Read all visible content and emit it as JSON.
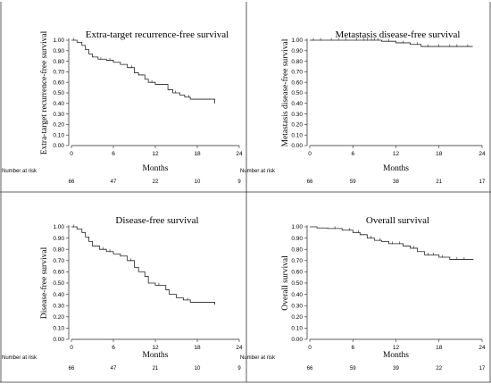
{
  "chart_data": [
    {
      "type": "line",
      "title": "Extra-target recurrence-free survival",
      "xlabel": "Months",
      "ylabel": "Extra-target recurrence-free survival",
      "xlim": [
        0,
        24
      ],
      "ylim": [
        0,
        1
      ],
      "xticks": [
        0,
        6,
        12,
        18,
        24
      ],
      "yticks": [
        "0.00",
        "0.10",
        "0.20",
        "0.30",
        "0.40",
        "0.50",
        "0.60",
        "0.70",
        "0.80",
        "0.90",
        "1.00"
      ],
      "risk_label": "Number at risk",
      "risk_counts": [
        "66",
        "47",
        "22",
        "10",
        "9"
      ],
      "x": [
        0,
        0.8,
        1.5,
        2.0,
        2.5,
        3.0,
        3.8,
        5.0,
        6.0,
        7.0,
        8.0,
        9.0,
        9.6,
        10.5,
        11.0,
        12.0,
        13.0,
        13.8,
        14.5,
        15.5,
        16.2,
        17.0,
        20.5
      ],
      "y": [
        1.0,
        0.98,
        0.95,
        0.91,
        0.87,
        0.84,
        0.82,
        0.81,
        0.79,
        0.77,
        0.74,
        0.69,
        0.67,
        0.63,
        0.6,
        0.58,
        0.58,
        0.53,
        0.5,
        0.48,
        0.46,
        0.44,
        0.4
      ],
      "censor_x": [
        0.3,
        4.2,
        5.5,
        8.6,
        11.5,
        14.9,
        16.8
      ]
    },
    {
      "type": "line",
      "title": "Metastasis disease-free survival",
      "xlabel": "Months",
      "ylabel": "Metastasis disease-free survival",
      "xlim": [
        0,
        24
      ],
      "ylim": [
        0,
        1
      ],
      "xticks": [
        0,
        6,
        12,
        18,
        24
      ],
      "yticks": [
        "0.00",
        "0.10",
        "0.20",
        "0.30",
        "0.40",
        "0.50",
        "0.60",
        "0.70",
        "0.80",
        "0.90",
        "1.00"
      ],
      "risk_label": "Number at risk",
      "risk_counts": [
        "66",
        "59",
        "38",
        "21",
        "17"
      ],
      "x": [
        0,
        10.0,
        12.0,
        14.0,
        15.5,
        22.7
      ],
      "y": [
        1.0,
        0.99,
        0.975,
        0.96,
        0.94,
        0.94
      ],
      "censor_x": [
        0.5,
        1.5,
        3.0,
        4.0,
        5.0,
        6.5,
        7.5,
        8.0,
        8.6,
        9.0,
        9.5,
        11.0,
        13.0,
        15.0,
        16.5,
        18.0,
        19.5,
        20.5,
        22.0
      ]
    },
    {
      "type": "line",
      "title": "Disease-free survival",
      "xlabel": "Months",
      "ylabel": "Disease-free survival",
      "xlim": [
        0,
        24
      ],
      "ylim": [
        0,
        1
      ],
      "xticks": [
        0,
        6,
        12,
        18,
        24
      ],
      "yticks": [
        "0.00",
        "0.10",
        "0.20",
        "0.30",
        "0.40",
        "0.50",
        "0.60",
        "0.70",
        "0.80",
        "0.90",
        "1.00"
      ],
      "risk_label": "Number at risk",
      "risk_counts": [
        "66",
        "47",
        "21",
        "10",
        "9"
      ],
      "x": [
        0,
        0.8,
        1.5,
        2.0,
        2.5,
        3.0,
        4.0,
        5.0,
        6.0,
        7.0,
        8.0,
        9.0,
        9.6,
        10.5,
        11.0,
        12.0,
        13.5,
        14.0,
        15.0,
        16.0,
        17.0,
        20.5
      ],
      "y": [
        1.0,
        0.98,
        0.95,
        0.91,
        0.87,
        0.83,
        0.8,
        0.78,
        0.76,
        0.74,
        0.7,
        0.64,
        0.6,
        0.56,
        0.5,
        0.48,
        0.44,
        0.4,
        0.37,
        0.35,
        0.33,
        0.31
      ],
      "censor_x": [
        0.3,
        4.5,
        5.5,
        8.5,
        12.5,
        16.6
      ]
    },
    {
      "type": "line",
      "title": "Overall survival",
      "xlabel": "Months",
      "ylabel": "Overall survival",
      "xlim": [
        0,
        24
      ],
      "ylim": [
        0,
        1
      ],
      "xticks": [
        0,
        6,
        12,
        18,
        24
      ],
      "yticks": [
        "0.00",
        "0.10",
        "0.20",
        "0.30",
        "0.40",
        "0.50",
        "0.60",
        "0.70",
        "0.80",
        "0.90",
        "1.00"
      ],
      "risk_label": "Number at risk",
      "risk_counts": [
        "66",
        "59",
        "39",
        "22",
        "17"
      ],
      "x": [
        0,
        1.0,
        2.5,
        4.5,
        6.0,
        7.0,
        8.0,
        9.0,
        10.0,
        11.0,
        13.0,
        14.0,
        15.0,
        16.0,
        18.0,
        19.5,
        22.8
      ],
      "y": [
        1.0,
        0.99,
        0.985,
        0.97,
        0.95,
        0.93,
        0.9,
        0.88,
        0.87,
        0.85,
        0.83,
        0.81,
        0.78,
        0.75,
        0.73,
        0.71,
        0.71
      ],
      "censor_x": [
        3.5,
        5.5,
        6.8,
        8.5,
        9.8,
        11.5,
        12.5,
        14.5,
        16.5,
        17.2,
        18.5,
        20.5,
        21.5
      ]
    }
  ]
}
